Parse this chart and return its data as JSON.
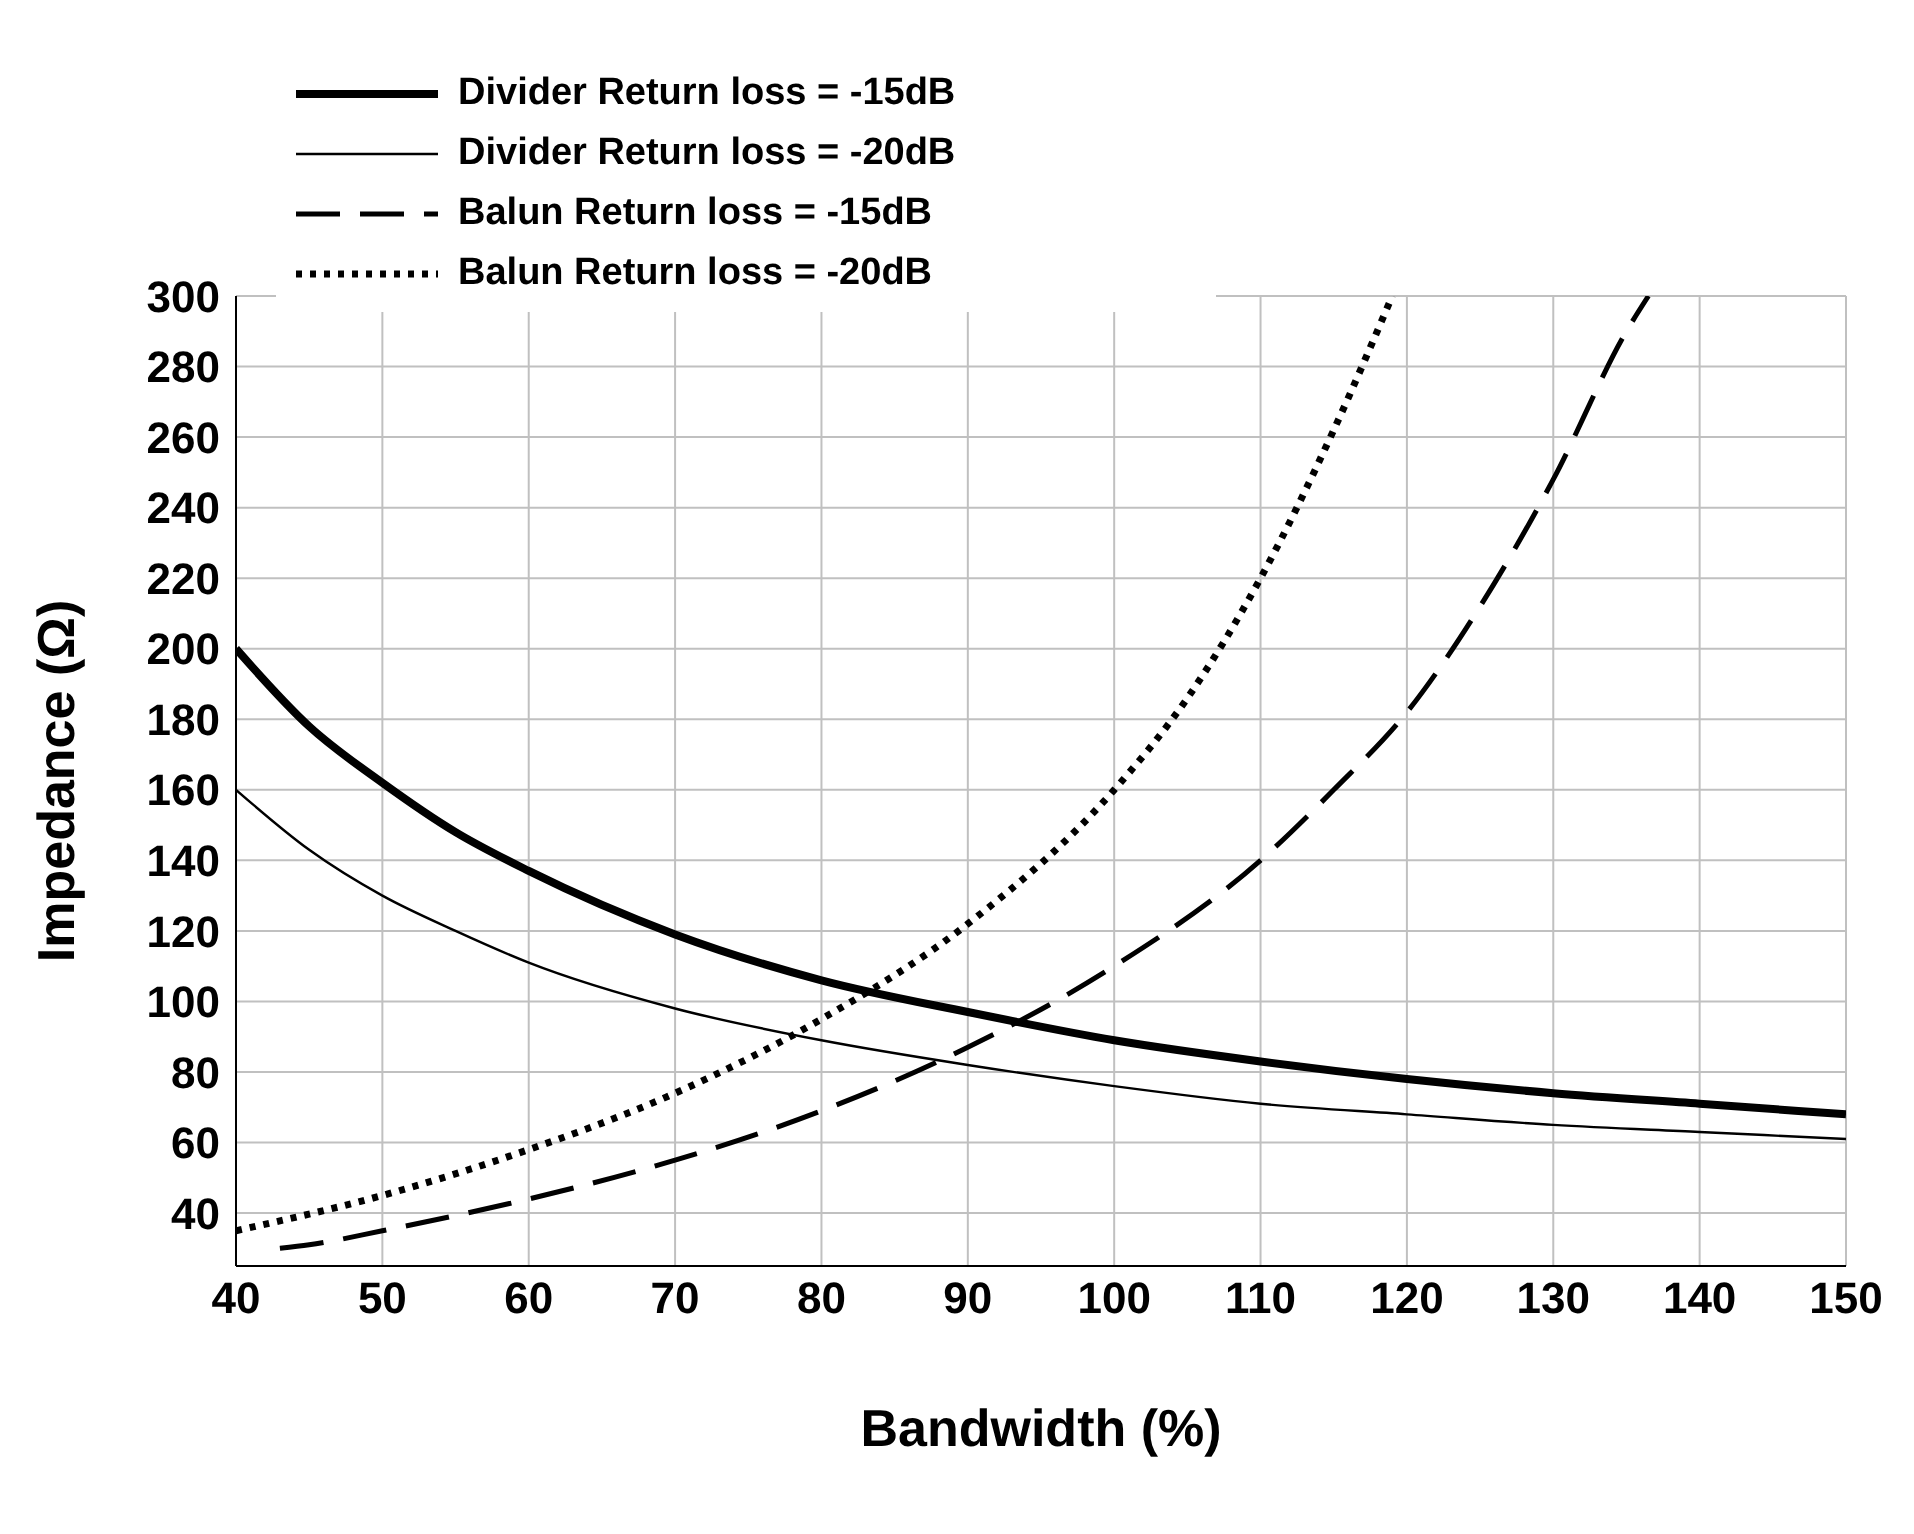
{
  "chart_data": {
    "type": "line",
    "xlabel": "Bandwidth (%)",
    "ylabel": "Impedance (Ω)",
    "xlim": [
      40,
      150
    ],
    "xticks": [
      40,
      50,
      60,
      70,
      80,
      90,
      100,
      110,
      120,
      130,
      140,
      150
    ],
    "ylim": [
      25,
      300
    ],
    "yticks": [
      40,
      60,
      80,
      100,
      120,
      140,
      160,
      180,
      200,
      220,
      240,
      260,
      280,
      300
    ],
    "grid": true,
    "legend": "top left",
    "marker": "none",
    "series": [
      {
        "name": "Divider Return loss = -15dB",
        "color": "#000000",
        "line_style": "solid",
        "x": [
          40,
          45,
          50,
          55,
          60,
          70,
          80,
          90,
          100,
          110,
          120,
          130,
          140,
          150
        ],
        "values": [
          200,
          178,
          162,
          148,
          137,
          119,
          106,
          97,
          89,
          83,
          78,
          74,
          71,
          68
        ]
      },
      {
        "name": "Divider Return loss = -20dB",
        "color": "#000000",
        "line_style": "solid",
        "x": [
          40,
          45,
          50,
          55,
          60,
          70,
          80,
          90,
          100,
          110,
          120,
          130,
          140,
          150
        ],
        "values": [
          160,
          143,
          130,
          120,
          111,
          98,
          89,
          82,
          76,
          71,
          68,
          65,
          63,
          61
        ]
      },
      {
        "name": "Balun Return loss = -15dB",
        "color": "#000000",
        "line_style": "dashed",
        "x": [
          43,
          45,
          50,
          60,
          70,
          80,
          90,
          100,
          110,
          115,
          120,
          125,
          130,
          135,
          136.5
        ],
        "values": [
          30,
          31,
          35,
          44,
          55,
          69,
          87,
          110,
          140,
          160,
          182,
          212,
          248,
          290,
          300
        ]
      },
      {
        "name": "Balun Return loss = -20dB",
        "color": "#000000",
        "line_style": "dotted",
        "x": [
          40,
          50,
          60,
          70,
          80,
          90,
          100,
          105,
          110,
          115,
          119
        ],
        "values": [
          35,
          45,
          58,
          74,
          95,
          122,
          160,
          186,
          220,
          262,
          300
        ]
      }
    ]
  }
}
